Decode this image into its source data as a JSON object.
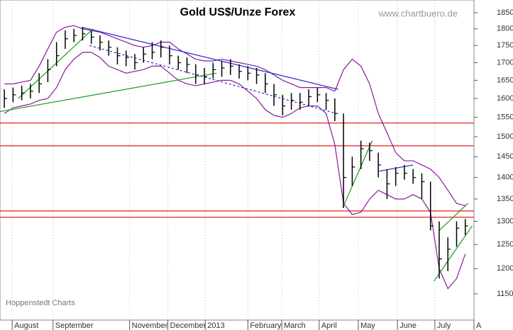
{
  "chart_data": {
    "type": "hlc",
    "title": "Gold US$/Unze Forex",
    "source": "www.chartbuero.de",
    "footer": "Hoppenstedt Charts",
    "log_scale": true,
    "grid": true,
    "bar_color": "#000000",
    "x": [
      0,
      1,
      2,
      3,
      4,
      5,
      6,
      7,
      8,
      9,
      10,
      11,
      12,
      13,
      14,
      15,
      16,
      17,
      18,
      19,
      20,
      21,
      22,
      23,
      24,
      25,
      26,
      27,
      28,
      29,
      30,
      31,
      32,
      33,
      34,
      35,
      36,
      37,
      38,
      39,
      40,
      41,
      42,
      43,
      44,
      45,
      46,
      47,
      48,
      49,
      50,
      51,
      52,
      53
    ],
    "xlim": [
      -0.5,
      54
    ],
    "xticks": [
      {
        "value": 0.9,
        "label": "August"
      },
      {
        "value": 5.6,
        "label": "September"
      },
      {
        "value": 14.4,
        "label": "November"
      },
      {
        "value": 18.8,
        "label": "December"
      },
      {
        "value": 23.1,
        "label": "2013"
      },
      {
        "value": 28.0,
        "label": "February"
      },
      {
        "value": 31.9,
        "label": "March"
      },
      {
        "value": 36.2,
        "label": "April"
      },
      {
        "value": 40.7,
        "label": "May"
      },
      {
        "value": 45.2,
        "label": "June"
      },
      {
        "value": 49.5,
        "label": "July"
      },
      {
        "value": 54,
        "label": "A"
      }
    ],
    "ylim": [
      1100,
      1890
    ],
    "yticks": [
      1150,
      1200,
      1250,
      1300,
      1350,
      1400,
      1450,
      1500,
      1550,
      1600,
      1650,
      1700,
      1750,
      1800,
      1850
    ],
    "series": [
      {
        "name": "high",
        "values": [
          1625,
          1630,
          1635,
          1640,
          1670,
          1710,
          1760,
          1795,
          1800,
          1805,
          1795,
          1780,
          1765,
          1745,
          1735,
          1725,
          1745,
          1760,
          1765,
          1750,
          1720,
          1715,
          1695,
          1685,
          1700,
          1705,
          1710,
          1695,
          1690,
          1685,
          1670,
          1640,
          1610,
          1615,
          1615,
          1625,
          1630,
          1615,
          1600,
          1560,
          1450,
          1490,
          1485,
          1460,
          1420,
          1425,
          1430,
          1420,
          1410,
          1390,
          1300,
          1265,
          1300,
          1305
        ]
      },
      {
        "name": "low",
        "values": [
          1575,
          1590,
          1595,
          1600,
          1615,
          1645,
          1690,
          1740,
          1760,
          1765,
          1755,
          1735,
          1720,
          1695,
          1690,
          1680,
          1700,
          1710,
          1715,
          1695,
          1680,
          1670,
          1640,
          1640,
          1655,
          1660,
          1665,
          1655,
          1650,
          1640,
          1615,
          1580,
          1555,
          1570,
          1570,
          1580,
          1590,
          1570,
          1540,
          1330,
          1380,
          1420,
          1440,
          1400,
          1350,
          1380,
          1395,
          1385,
          1350,
          1280,
          1180,
          1195,
          1245,
          1270
        ]
      },
      {
        "name": "close",
        "values": [
          1600,
          1610,
          1615,
          1620,
          1640,
          1680,
          1720,
          1770,
          1780,
          1785,
          1775,
          1760,
          1745,
          1720,
          1715,
          1700,
          1725,
          1730,
          1745,
          1720,
          1700,
          1695,
          1665,
          1660,
          1680,
          1685,
          1690,
          1675,
          1670,
          1665,
          1640,
          1610,
          1580,
          1595,
          1590,
          1605,
          1610,
          1595,
          1560,
          1400,
          1425,
          1470,
          1465,
          1430,
          1385,
          1410,
          1410,
          1400,
          1390,
          1290,
          1220,
          1240,
          1285,
          1290
        ]
      }
    ],
    "bands": {
      "color": "#8a1a9a",
      "upper": [
        1640,
        1640,
        1645,
        1650,
        1690,
        1740,
        1790,
        1805,
        1810,
        1800,
        1795,
        1790,
        1780,
        1770,
        1760,
        1750,
        1745,
        1750,
        1760,
        1760,
        1740,
        1725,
        1710,
        1705,
        1705,
        1710,
        1705,
        1700,
        1695,
        1690,
        1680,
        1665,
        1650,
        1640,
        1630,
        1630,
        1630,
        1630,
        1620,
        1680,
        1710,
        1690,
        1640,
        1560,
        1510,
        1460,
        1440,
        1440,
        1430,
        1420,
        1400,
        1370,
        1340,
        1335
      ],
      "lower": [
        1560,
        1575,
        1580,
        1585,
        1595,
        1600,
        1630,
        1680,
        1710,
        1730,
        1730,
        1715,
        1690,
        1680,
        1670,
        1675,
        1680,
        1690,
        1690,
        1670,
        1650,
        1640,
        1635,
        1640,
        1645,
        1650,
        1650,
        1640,
        1620,
        1600,
        1570,
        1555,
        1550,
        1560,
        1575,
        1580,
        1580,
        1560,
        1480,
        1340,
        1315,
        1320,
        1350,
        1370,
        1360,
        1350,
        1350,
        1360,
        1350,
        1320,
        1200,
        1160,
        1180,
        1230
      ]
    },
    "levels": {
      "color": "#e02020",
      "values": [
        1535,
        1477,
        1323,
        1309
      ]
    },
    "trend_lines": [
      {
        "color": "#1a2ad0",
        "dashed": false,
        "points": [
          [
            8.9,
            1805
          ],
          [
            38.4,
            1625
          ]
        ]
      },
      {
        "color": "#1a2ad0",
        "dashed": true,
        "points": [
          [
            9.8,
            1750
          ],
          [
            38.2,
            1560
          ]
        ]
      },
      {
        "color": "#1a9a1a",
        "dashed": false,
        "points": [
          [
            -0.5,
            1565
          ],
          [
            24.4,
            1670
          ]
        ]
      },
      {
        "color": "#1a9a1a",
        "dashed": false,
        "points": [
          [
            1.6,
            1600
          ],
          [
            10.2,
            1800
          ]
        ]
      },
      {
        "color": "#1a9a1a",
        "dashed": false,
        "points": [
          [
            38.9,
            1330
          ],
          [
            42.3,
            1490
          ]
        ]
      },
      {
        "color": "#1a2ad0",
        "dashed": false,
        "points": [
          [
            43.1,
            1415
          ],
          [
            47.0,
            1430
          ]
        ]
      },
      {
        "color": "#1a9a1a",
        "dashed": false,
        "points": [
          [
            49.4,
            1175
          ],
          [
            53.8,
            1290
          ]
        ]
      },
      {
        "color": "#1a9a1a",
        "dashed": false,
        "points": [
          [
            50.0,
            1280
          ],
          [
            53.3,
            1340
          ]
        ]
      }
    ]
  }
}
